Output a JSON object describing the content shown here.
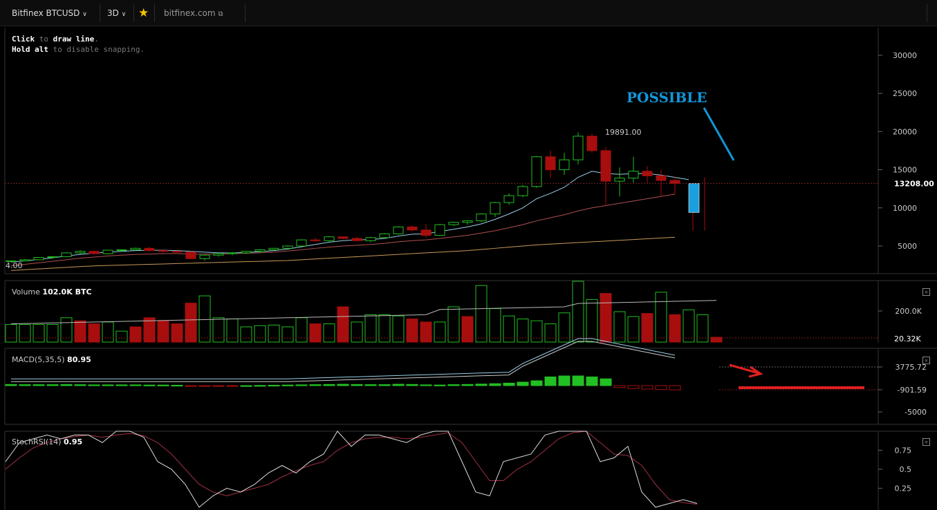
{
  "toolbar": {
    "symbol": "Bitfinex BTCUSD",
    "interval": "3D",
    "site": "bitfinex.com"
  },
  "hint": {
    "line1_a": "Click",
    "line1_b": " to ",
    "line1_c": "draw line",
    "line1_d": ".",
    "line2_a": "Hold alt",
    "line2_b": " to disable snapping."
  },
  "annotations": {
    "possible": "POSSIBLE",
    "high_label": "19891.00"
  },
  "price_axis": {
    "ticks": [
      "30000",
      "25000",
      "20000",
      "15000",
      "10000",
      "5000"
    ],
    "current": "13208.00",
    "left_cut": "4.00"
  },
  "volume": {
    "label": "Volume",
    "value": "102.0K BTC",
    "ticks": [
      "200.0K"
    ],
    "current": "20.32K"
  },
  "macd": {
    "label": "MACD(5,35,5)",
    "value": "80.95",
    "ticks": [
      "3775.72",
      "-901.59",
      "-5000"
    ]
  },
  "stochrsi": {
    "label": "StochRSI(14)",
    "value": "0.95",
    "ticks": [
      "0.75",
      "0.5",
      "0.25"
    ]
  },
  "colors": {
    "up": "#22c022",
    "down": "#a80e0e",
    "last": "#18a0e0",
    "annotation": "#1296d8",
    "arrow": "#e02020"
  },
  "chart_data": {
    "type": "candlestick",
    "candles": [
      [
        3000,
        3100,
        2900,
        3050
      ],
      [
        3050,
        3300,
        3000,
        3200
      ],
      [
        3200,
        3550,
        3150,
        3500
      ],
      [
        3500,
        3700,
        3400,
        3600
      ],
      [
        3600,
        4200,
        3550,
        4100
      ],
      [
        4100,
        4450,
        3950,
        4300
      ],
      [
        4300,
        4400,
        3850,
        4000
      ],
      [
        4000,
        4500,
        3900,
        4450
      ],
      [
        4450,
        4600,
        4300,
        4500
      ],
      [
        4500,
        4800,
        4400,
        4700
      ],
      [
        4700,
        4900,
        4300,
        4400
      ],
      [
        4400,
        4550,
        4100,
        4300
      ],
      [
        4300,
        4400,
        4100,
        4200
      ],
      [
        4200,
        4300,
        3300,
        3350
      ],
      [
        3350,
        3900,
        3100,
        3800
      ],
      [
        3800,
        4100,
        3600,
        4000
      ],
      [
        4000,
        4200,
        3800,
        4100
      ],
      [
        4100,
        4350,
        3950,
        4300
      ],
      [
        4300,
        4600,
        4150,
        4500
      ],
      [
        4500,
        4750,
        4400,
        4700
      ],
      [
        4700,
        5100,
        4600,
        5000
      ],
      [
        5000,
        5900,
        4900,
        5800
      ],
      [
        5800,
        6100,
        5500,
        5700
      ],
      [
        5700,
        6300,
        5600,
        6200
      ],
      [
        6200,
        6300,
        5900,
        6000
      ],
      [
        6000,
        6200,
        5600,
        5700
      ],
      [
        5700,
        6200,
        5500,
        6100
      ],
      [
        6100,
        6700,
        6000,
        6600
      ],
      [
        6600,
        7600,
        6500,
        7500
      ],
      [
        7500,
        7700,
        6900,
        7100
      ],
      [
        7100,
        7900,
        6100,
        6400
      ],
      [
        6400,
        7900,
        6300,
        7800
      ],
      [
        7800,
        8200,
        7600,
        8100
      ],
      [
        8100,
        8400,
        7800,
        8300
      ],
      [
        8300,
        9300,
        8100,
        9200
      ],
      [
        9200,
        10800,
        8800,
        10700
      ],
      [
        10700,
        11900,
        10400,
        11600
      ],
      [
        11600,
        13000,
        11400,
        12800
      ],
      [
        12800,
        16800,
        12600,
        16700
      ],
      [
        16700,
        17500,
        13900,
        15000
      ],
      [
        15000,
        17200,
        14300,
        16300
      ],
      [
        16300,
        19891,
        15700,
        19400
      ],
      [
        19400,
        19700,
        17200,
        17500
      ],
      [
        17500,
        18000,
        10300,
        13500
      ],
      [
        13500,
        15300,
        11500,
        13900
      ],
      [
        13900,
        16700,
        13300,
        14800
      ],
      [
        14800,
        15500,
        13300,
        14200
      ],
      [
        14200,
        15000,
        11400,
        13600
      ],
      [
        13600,
        14100,
        11800,
        13208
      ]
    ],
    "last_candle": [
      13208,
      14000,
      7000,
      9400
    ],
    "ema_fast": [
      2900,
      3050,
      3250,
      3450,
      3700,
      3900,
      4050,
      4200,
      4300,
      4400,
      4450,
      4450,
      4400,
      4300,
      4200,
      4100,
      4100,
      4150,
      4250,
      4400,
      4600,
      4900,
      5200,
      5500,
      5700,
      5800,
      5850,
      6000,
      6300,
      6550,
      6600,
      6900,
      7200,
      7500,
      7900,
      8500,
      9200,
      10000,
      11200,
      11900,
      12700,
      14000,
      14800,
      14500,
      14400,
      14500,
      14500,
      14300,
      14000,
      13700
    ],
    "sma_mid": [
      2400,
      2600,
      2800,
      3000,
      3200,
      3400,
      3550,
      3700,
      3800,
      3900,
      3950,
      4000,
      4000,
      3950,
      3950,
      3950,
      4000,
      4050,
      4100,
      4200,
      4350,
      4500,
      4700,
      4850,
      5000,
      5100,
      5200,
      5350,
      5550,
      5700,
      5800,
      6000,
      6200,
      6400,
      6700,
      7000,
      7400,
      7800,
      8300,
      8700,
      9100,
      9600,
      10000,
      10300,
      10600,
      10900,
      11200,
      11500,
      11800
    ],
    "sma_slow": [
      1800,
      1900,
      2000,
      2100,
      2200,
      2300,
      2400,
      2450,
      2500,
      2550,
      2600,
      2650,
      2700,
      2750,
      2800,
      2850,
      2900,
      2950,
      3000,
      3050,
      3100,
      3200,
      3300,
      3400,
      3500,
      3600,
      3700,
      3800,
      3900,
      4000,
      4100,
      4200,
      4300,
      4400,
      4550,
      4700,
      4850,
      5000,
      5150,
      5250,
      5350,
      5450,
      5550,
      5650,
      5750,
      5850,
      5950,
      6050,
      6150
    ],
    "volume_rel": [
      0.29,
      0.29,
      0.29,
      0.29,
      0.4,
      0.35,
      0.3,
      0.33,
      0.18,
      0.25,
      0.4,
      0.35,
      0.3,
      0.64,
      0.76,
      0.4,
      0.38,
      0.25,
      0.27,
      0.28,
      0.25,
      0.4,
      0.3,
      0.3,
      0.58,
      0.33,
      0.45,
      0.45,
      0.43,
      0.38,
      0.33,
      0.33,
      0.58,
      0.42,
      0.93,
      0.55,
      0.43,
      0.38,
      0.35,
      0.3,
      0.48,
      1.0,
      0.7,
      0.8,
      0.5,
      0.42,
      0.47,
      0.82,
      0.45,
      0.53,
      0.45,
      0.08
    ],
    "volume_up": [
      1,
      1,
      1,
      1,
      1,
      0,
      0,
      1,
      1,
      0,
      0,
      0,
      0,
      0,
      1,
      1,
      1,
      1,
      1,
      1,
      1,
      1,
      0,
      1,
      0,
      1,
      1,
      1,
      1,
      0,
      0,
      1,
      1,
      0,
      1,
      1,
      1,
      1,
      1,
      1,
      1,
      1,
      1,
      0,
      1,
      1,
      0,
      1,
      0,
      1,
      1,
      0
    ],
    "macd_hist": [
      0.06,
      0.05,
      0.05,
      0.05,
      0.06,
      0.05,
      0.04,
      0.04,
      0.04,
      0.04,
      0.03,
      0.03,
      0.02,
      -0.02,
      -0.03,
      -0.02,
      -0.01,
      0.0,
      0.01,
      0.02,
      0.03,
      0.04,
      0.05,
      0.06,
      0.07,
      0.06,
      0.05,
      0.05,
      0.07,
      0.06,
      0.04,
      0.03,
      0.05,
      0.06,
      0.08,
      0.1,
      0.13,
      0.18,
      0.25,
      0.45,
      0.5,
      0.5,
      0.45,
      0.35,
      -0.1,
      -0.15,
      -0.18,
      -0.2,
      -0.22
    ],
    "stoch_k": [
      0.6,
      0.85,
      0.9,
      0.95,
      0.9,
      0.95,
      0.95,
      0.85,
      1.0,
      1.0,
      0.92,
      0.6,
      0.5,
      0.3,
      0.0,
      0.15,
      0.25,
      0.2,
      0.3,
      0.45,
      0.55,
      0.45,
      0.6,
      0.7,
      1.0,
      0.8,
      0.95,
      0.95,
      0.9,
      0.85,
      0.95,
      1.0,
      1.0,
      0.6,
      0.2,
      0.15,
      0.6,
      0.65,
      0.7,
      0.95,
      1.0,
      1.0,
      1.0,
      0.6,
      0.65,
      0.8,
      0.2,
      0.0,
      0.05,
      0.1,
      0.05
    ],
    "stoch_d": [
      0.5,
      0.65,
      0.78,
      0.85,
      0.9,
      0.93,
      0.95,
      0.92,
      0.95,
      0.97,
      0.94,
      0.85,
      0.7,
      0.5,
      0.3,
      0.2,
      0.15,
      0.2,
      0.25,
      0.3,
      0.4,
      0.48,
      0.55,
      0.6,
      0.75,
      0.85,
      0.9,
      0.92,
      0.92,
      0.9,
      0.92,
      0.95,
      0.98,
      0.85,
      0.6,
      0.35,
      0.35,
      0.5,
      0.6,
      0.75,
      0.9,
      0.98,
      1.0,
      0.85,
      0.7,
      0.68,
      0.55,
      0.3,
      0.1,
      0.06,
      0.04
    ]
  }
}
